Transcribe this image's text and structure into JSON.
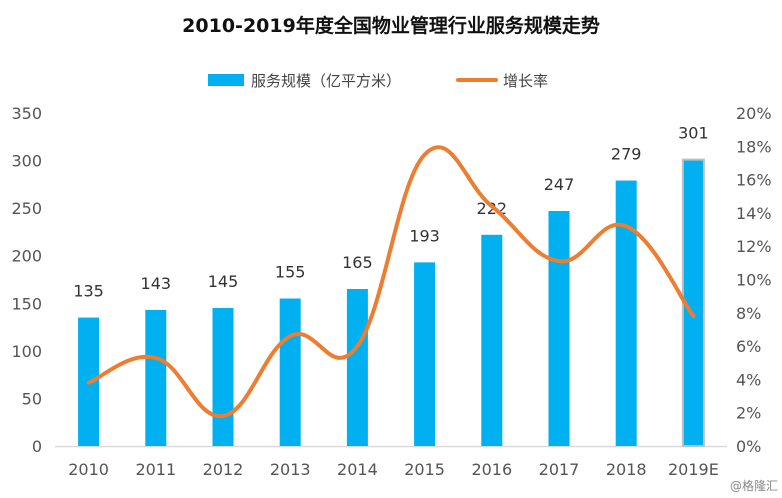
{
  "chart_data": {
    "type": "bar",
    "title": "2010-2019年度全国物业管理行业服务规模走势",
    "categories": [
      "2010",
      "2011",
      "2012",
      "2013",
      "2014",
      "2015",
      "2016",
      "2017",
      "2018",
      "2019E"
    ],
    "series": [
      {
        "name": "服务规模（亿平方米）",
        "type": "bar",
        "axis": "left",
        "color": "#00b0f0",
        "values": [
          135,
          143,
          145,
          155,
          165,
          193,
          222,
          247,
          279,
          301
        ],
        "data_labels": [
          "135",
          "143",
          "145",
          "155",
          "165",
          "193",
          "222",
          "247",
          "279",
          "301"
        ]
      },
      {
        "name": "增长率",
        "type": "line",
        "axis": "right",
        "color": "#ed7d31",
        "smooth": true,
        "values": [
          3.8,
          5.3,
          1.8,
          6.6,
          6.0,
          17.5,
          14.4,
          11.1,
          13.2,
          7.8
        ]
      }
    ],
    "y_left": {
      "ylim": [
        0,
        350
      ],
      "ticks": [
        0,
        50,
        100,
        150,
        200,
        250,
        300,
        350
      ],
      "tick_labels": [
        "0",
        "50",
        "100",
        "150",
        "200",
        "250",
        "300",
        "350"
      ]
    },
    "y_right": {
      "ylim": [
        0,
        20
      ],
      "ticks": [
        0,
        2,
        4,
        6,
        8,
        10,
        12,
        14,
        16,
        18,
        20
      ],
      "tick_labels": [
        "0%",
        "2%",
        "4%",
        "6%",
        "8%",
        "10%",
        "12%",
        "14%",
        "16%",
        "18%",
        "20%"
      ]
    },
    "xlabel": "",
    "ylabel": "",
    "grid": false,
    "legend": {
      "position": "top-center",
      "entries": [
        "服务规模（亿平方米）",
        "增长率"
      ]
    },
    "highlighted_category": "2019E",
    "highlight_border_color": "#bfbfbf",
    "axis_line_color": "#d9d9d9"
  },
  "watermark": "@格隆汇"
}
